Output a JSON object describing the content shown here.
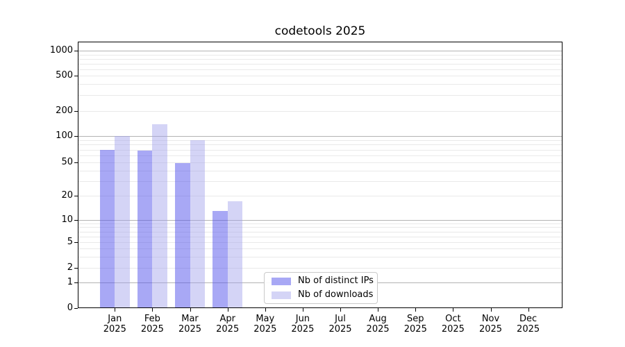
{
  "chart_data": {
    "type": "bar",
    "title": "codetools 2025",
    "year": "2025",
    "categories": [
      "Jan",
      "Feb",
      "Mar",
      "Apr",
      "May",
      "Jun",
      "Jul",
      "Aug",
      "Sep",
      "Oct",
      "Nov",
      "Dec"
    ],
    "series": [
      {
        "name": "Nb of distinct IPs",
        "color": "rgba(82,82,235,0.5)",
        "values": [
          70,
          68,
          49,
          13,
          0,
          0,
          0,
          0,
          0,
          0,
          0,
          0
        ]
      },
      {
        "name": "Nb of downloads",
        "color": "rgba(160,160,235,0.45)",
        "values": [
          100,
          140,
          90,
          17,
          0,
          0,
          0,
          0,
          0,
          0,
          0,
          0
        ]
      }
    ],
    "yticks": [
      0,
      1,
      2,
      5,
      10,
      20,
      50,
      100,
      200,
      500,
      1000
    ],
    "ylim": [
      0,
      1000
    ],
    "xlabel": "",
    "ylabel": "",
    "grid": true,
    "legend_position": "lower center",
    "colors": {
      "axis": "#000000",
      "major_grid": "#b3b3b3",
      "minor_grid": "#e9e9e9",
      "legend_border": "#c9c9c9"
    }
  }
}
